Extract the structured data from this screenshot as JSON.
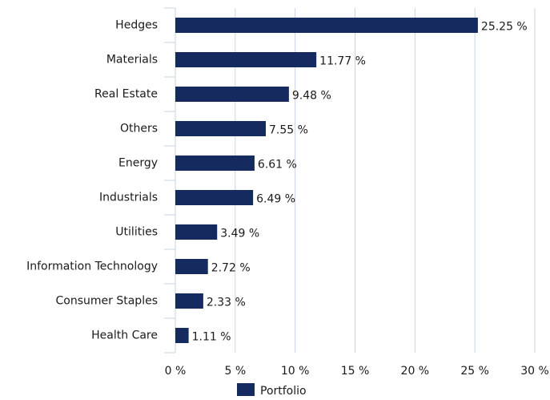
{
  "chart_data": {
    "type": "bar",
    "orientation": "horizontal",
    "categories": [
      "Hedges",
      "Materials",
      "Real Estate",
      "Others",
      "Energy",
      "Industrials",
      "Utilities",
      "Information Technology",
      "Consumer Staples",
      "Health Care"
    ],
    "series": [
      {
        "name": "Portfolio",
        "color": "#152a5f",
        "values": [
          25.25,
          11.77,
          9.48,
          7.55,
          6.61,
          6.49,
          3.49,
          2.72,
          2.33,
          1.11
        ],
        "value_labels": [
          "25.25 %",
          "11.77 %",
          "9.48 %",
          "7.55 %",
          "6.61 %",
          "6.49 %",
          "3.49 %",
          "2.72 %",
          "2.33 %",
          "1.11 %"
        ]
      }
    ],
    "xlim": [
      0,
      30
    ],
    "xticks": [
      {
        "value": 0,
        "label": "0 %"
      },
      {
        "value": 5,
        "label": "5 %"
      },
      {
        "value": 10,
        "label": "10 %"
      },
      {
        "value": 15,
        "label": "15 %"
      },
      {
        "value": 20,
        "label": "20 %"
      },
      {
        "value": 25,
        "label": "25 %"
      },
      {
        "value": 30,
        "label": "30 %"
      }
    ],
    "grid": true,
    "legend": "bottom"
  }
}
